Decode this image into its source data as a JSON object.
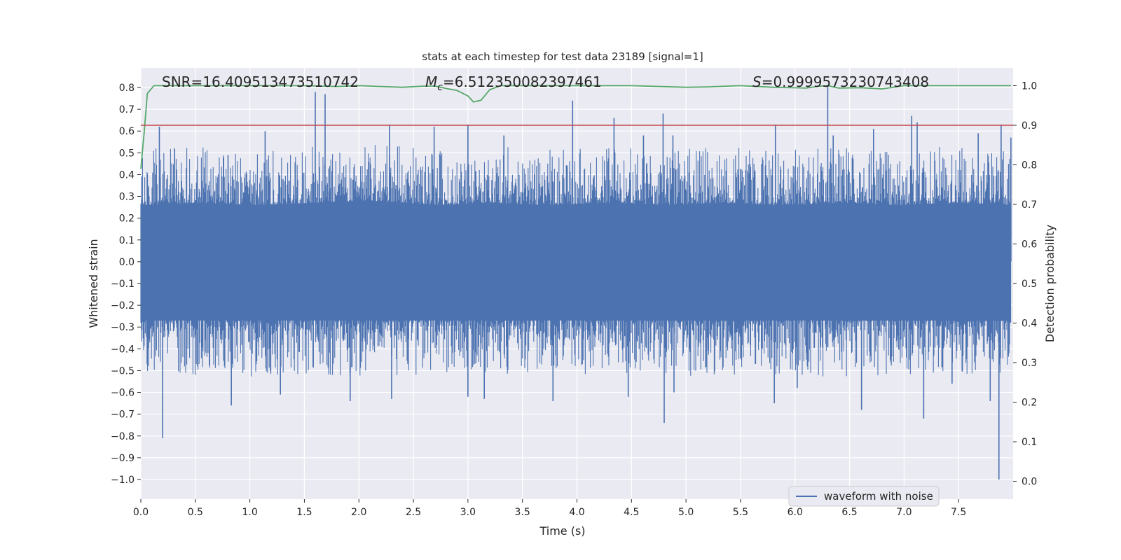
{
  "chart_data": {
    "type": "line",
    "title": "stats at each timestep for test data 23189 [signal=1]",
    "xlabel": "Time (s)",
    "ylabel": "Whitened strain",
    "y2label": "Detection probability",
    "xlim": [
      0.0,
      8.0
    ],
    "ylim": [
      -1.09,
      0.89
    ],
    "y2lim": [
      -0.045,
      1.045
    ],
    "xticks": [
      "0.0",
      "0.5",
      "1.0",
      "1.5",
      "2.0",
      "2.5",
      "3.0",
      "3.5",
      "4.0",
      "4.5",
      "5.0",
      "5.5",
      "6.0",
      "6.5",
      "7.0",
      "7.5"
    ],
    "xtick_values": [
      0.0,
      0.5,
      1.0,
      1.5,
      2.0,
      2.5,
      3.0,
      3.5,
      4.0,
      4.5,
      5.0,
      5.5,
      6.0,
      6.5,
      7.0,
      7.5
    ],
    "yticks": [
      "0.8",
      "0.7",
      "0.6",
      "0.5",
      "0.4",
      "0.3",
      "0.2",
      "0.1",
      "0.0",
      "−0.1",
      "−0.2",
      "−0.3",
      "−0.4",
      "−0.5",
      "−0.6",
      "−0.7",
      "−0.8",
      "−0.9",
      "−1.0"
    ],
    "ytick_values": [
      0.8,
      0.7,
      0.6,
      0.5,
      0.4,
      0.3,
      0.2,
      0.1,
      0.0,
      -0.1,
      -0.2,
      -0.3,
      -0.4,
      -0.5,
      -0.6,
      -0.7,
      -0.8,
      -0.9,
      -1.0
    ],
    "y2ticks": [
      "1.0",
      "0.9",
      "0.8",
      "0.7",
      "0.6",
      "0.5",
      "0.4",
      "0.3",
      "0.2",
      "0.1",
      "0.0"
    ],
    "y2tick_values": [
      1.0,
      0.9,
      0.8,
      0.7,
      0.6,
      0.5,
      0.4,
      0.3,
      0.2,
      0.1,
      0.0
    ],
    "annotations": {
      "snr": "SNR=16.409513473510742",
      "mc_label": "M",
      "mc_sub": "c",
      "mc_value": "=6.512350082397461",
      "s_label": "S",
      "s_value": "=0.9999573230743408"
    },
    "threshold": 0.9,
    "legend": {
      "label": "waveform with noise",
      "position": "lower-right"
    },
    "grid": true,
    "colors": {
      "waveform": "#4c72b0",
      "probability": "#55a868",
      "threshold": "#c44e52",
      "background": "#eaeaf2",
      "grid": "#ffffff"
    },
    "series": [
      {
        "name": "waveform with noise",
        "envelope_upper": [
          0.26,
          0.27,
          0.26,
          0.27,
          0.28,
          0.26,
          0.27,
          0.26,
          0.27,
          0.26,
          0.27,
          0.26,
          0.27,
          0.26,
          0.27,
          0.26
        ],
        "envelope_lower": [
          -0.27,
          -0.26,
          -0.27,
          -0.26,
          -0.27,
          -0.26,
          -0.27,
          -0.26,
          -0.27,
          -0.26,
          -0.27,
          -0.26,
          -0.27,
          -0.26,
          -0.27,
          -0.27
        ],
        "peaks_positive": [
          [
            0.17,
            0.62
          ],
          [
            0.31,
            0.52
          ],
          [
            0.8,
            0.49
          ],
          [
            1.14,
            0.6
          ],
          [
            1.6,
            0.78
          ],
          [
            1.69,
            0.77
          ],
          [
            2.28,
            0.63
          ],
          [
            2.69,
            0.62
          ],
          [
            3.0,
            0.63
          ],
          [
            3.33,
            0.58
          ],
          [
            3.96,
            0.74
          ],
          [
            4.34,
            0.66
          ],
          [
            4.61,
            0.58
          ],
          [
            4.79,
            0.68
          ],
          [
            4.88,
            0.58
          ],
          [
            5.82,
            0.63
          ],
          [
            6.3,
            0.81
          ],
          [
            6.35,
            0.58
          ],
          [
            6.72,
            0.61
          ],
          [
            7.07,
            0.67
          ],
          [
            7.12,
            0.64
          ],
          [
            7.68,
            0.59
          ],
          [
            7.89,
            0.63
          ],
          [
            7.98,
            0.57
          ]
        ],
        "peaks_negative": [
          [
            0.2,
            -0.81
          ],
          [
            0.83,
            -0.66
          ],
          [
            1.28,
            -0.61
          ],
          [
            1.92,
            -0.64
          ],
          [
            2.3,
            -0.63
          ],
          [
            3.0,
            -0.62
          ],
          [
            3.15,
            -0.63
          ],
          [
            3.78,
            -0.64
          ],
          [
            4.47,
            -0.62
          ],
          [
            4.8,
            -0.74
          ],
          [
            4.89,
            -0.6
          ],
          [
            5.81,
            -0.65
          ],
          [
            6.02,
            -0.58
          ],
          [
            6.61,
            -0.68
          ],
          [
            7.18,
            -0.72
          ],
          [
            7.44,
            -0.56
          ],
          [
            7.79,
            -0.64
          ],
          [
            7.87,
            -1.0
          ]
        ]
      },
      {
        "name": "",
        "x": [
          0.0,
          0.03,
          0.06,
          0.12,
          0.2,
          0.5,
          1.0,
          1.5,
          1.8,
          2.0,
          2.2,
          2.4,
          2.6,
          2.7,
          2.8,
          2.9,
          3.0,
          3.05,
          3.12,
          3.2,
          3.3,
          3.5,
          4.0,
          4.5,
          5.0,
          5.2,
          5.5,
          5.8,
          6.1,
          6.2,
          6.3,
          6.4,
          6.6,
          6.8,
          7.0,
          7.5,
          7.98
        ],
        "values": [
          0.79,
          0.88,
          0.98,
          1.0,
          1.0,
          1.0,
          1.0,
          1.0,
          0.998,
          1.0,
          0.998,
          0.996,
          0.999,
          0.999,
          0.993,
          0.988,
          0.974,
          0.959,
          0.963,
          0.99,
          1.0,
          1.0,
          1.0,
          1.0,
          0.996,
          0.997,
          1.0,
          0.996,
          0.994,
          0.998,
          1.0,
          0.994,
          0.995,
          0.992,
          1.0,
          1.0,
          1.0
        ]
      }
    ]
  }
}
